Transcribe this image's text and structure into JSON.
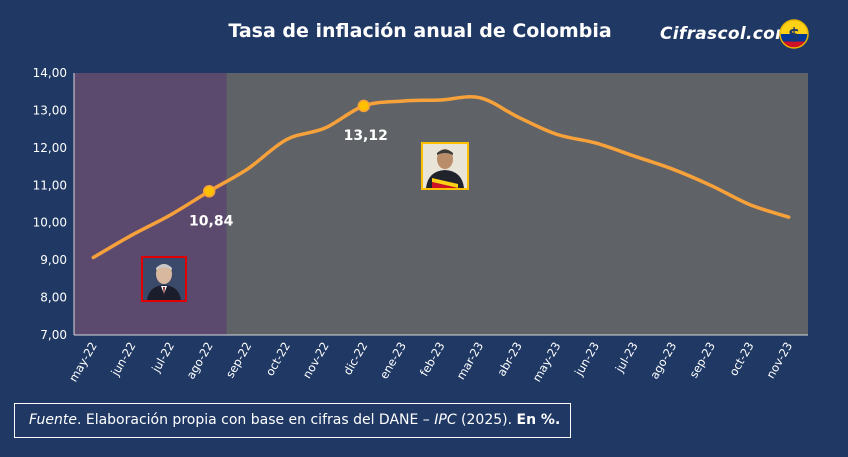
{
  "title": "Tasa de inflación anual de Colombia",
  "brand": "Cifrascol.com",
  "source": {
    "label_italic": "Fuente",
    "text_main": ". Elaboración propia con base en cifras del DANE – ",
    "ipc_italic": "IPC",
    "year": " (2025). ",
    "unit_bold": "En %."
  },
  "colors": {
    "background": "#1f3864",
    "plot_gray": "#5f6266",
    "plot_purple": "#5b4a6e",
    "line": "#f7a13b",
    "marker": "#ffc000"
  },
  "icons": [
    "coin-dollar-icon",
    "colombia-flag-icon"
  ],
  "chart_data": {
    "type": "line",
    "title": "Tasa de inflación anual de Colombia",
    "xlabel": "",
    "ylabel": "",
    "ylim": [
      7,
      14
    ],
    "yticks": [
      "7,00",
      "8,00",
      "9,00",
      "10,00",
      "11,00",
      "12,00",
      "13,00",
      "14,00"
    ],
    "categories": [
      "may-22",
      "jun-22",
      "jul-22",
      "ago-22",
      "sep-22",
      "oct-22",
      "nov-22",
      "dic-22",
      "ene-23",
      "feb-23",
      "mar-23",
      "abr-23",
      "may-23",
      "jun-23",
      "jul-23",
      "ago-23",
      "sep-23",
      "oct-23",
      "nov-23"
    ],
    "values": [
      9.07,
      9.67,
      10.21,
      10.84,
      11.44,
      12.22,
      12.53,
      13.12,
      13.25,
      13.28,
      13.34,
      12.82,
      12.36,
      12.13,
      11.78,
      11.43,
      10.99,
      10.48,
      10.15
    ],
    "highlighted": [
      {
        "index": 3,
        "label": "10,84"
      },
      {
        "index": 7,
        "label": "13,12"
      }
    ],
    "shaded_period": {
      "from": "may-22",
      "to": "ago-22"
    },
    "grid": false,
    "legend": "none"
  }
}
